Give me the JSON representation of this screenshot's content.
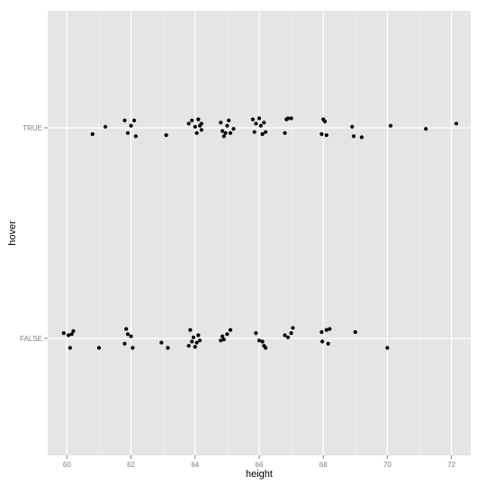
{
  "chart_data": {
    "type": "scatter",
    "title": "",
    "xlabel": "height",
    "ylabel": "hover",
    "xlim": [
      59.4,
      72.6
    ],
    "x_ticks": [
      60,
      62,
      64,
      66,
      68,
      70,
      72
    ],
    "categories": [
      "FALSE",
      "TRUE"
    ],
    "grid": true,
    "background": "#e5e5e5",
    "grid_color": "#ffffff",
    "point_color": "#000000",
    "points": {
      "TRUE": [
        [
          60.8,
          -0.06
        ],
        [
          61.2,
          0.01
        ],
        [
          61.8,
          0.07
        ],
        [
          61.9,
          -0.05
        ],
        [
          62.0,
          0.02
        ],
        [
          62.1,
          0.07
        ],
        [
          62.15,
          -0.08
        ],
        [
          63.1,
          -0.07
        ],
        [
          63.8,
          0.04
        ],
        [
          63.9,
          0.07
        ],
        [
          64.0,
          0.01
        ],
        [
          64.05,
          -0.05
        ],
        [
          64.1,
          0.08
        ],
        [
          64.15,
          0.02
        ],
        [
          64.2,
          -0.02
        ],
        [
          64.2,
          0.04
        ],
        [
          64.8,
          0.05
        ],
        [
          64.85,
          -0.03
        ],
        [
          64.9,
          -0.08
        ],
        [
          64.95,
          -0.05
        ],
        [
          65.0,
          0.02
        ],
        [
          65.05,
          0.07
        ],
        [
          65.1,
          -0.05
        ],
        [
          65.2,
          -0.01
        ],
        [
          65.8,
          0.08
        ],
        [
          65.85,
          -0.04
        ],
        [
          65.9,
          0.04
        ],
        [
          66.0,
          0.09
        ],
        [
          66.05,
          0.02
        ],
        [
          66.1,
          -0.06
        ],
        [
          66.15,
          0.05
        ],
        [
          66.2,
          -0.04
        ],
        [
          66.8,
          -0.05
        ],
        [
          66.85,
          0.08
        ],
        [
          66.9,
          0.09
        ],
        [
          67.0,
          0.09
        ],
        [
          67.95,
          -0.06
        ],
        [
          68.0,
          0.08
        ],
        [
          68.05,
          0.06
        ],
        [
          68.1,
          -0.07
        ],
        [
          68.9,
          0.01
        ],
        [
          68.95,
          -0.08
        ],
        [
          69.2,
          -0.09
        ],
        [
          70.1,
          0.02
        ],
        [
          71.2,
          -0.01
        ],
        [
          72.15,
          0.04
        ]
      ],
      "FALSE": [
        [
          59.9,
          0.05
        ],
        [
          60.05,
          0.03
        ],
        [
          60.1,
          -0.09
        ],
        [
          60.15,
          0.04
        ],
        [
          60.2,
          0.07
        ],
        [
          61.0,
          -0.09
        ],
        [
          61.8,
          -0.05
        ],
        [
          61.85,
          0.09
        ],
        [
          61.9,
          0.04
        ],
        [
          62.0,
          0.02
        ],
        [
          62.05,
          -0.09
        ],
        [
          62.95,
          -0.04
        ],
        [
          63.15,
          -0.09
        ],
        [
          63.8,
          -0.07
        ],
        [
          63.85,
          0.08
        ],
        [
          63.9,
          -0.03
        ],
        [
          63.95,
          0.01
        ],
        [
          64.0,
          -0.08
        ],
        [
          64.05,
          -0.04
        ],
        [
          64.1,
          0.03
        ],
        [
          64.15,
          -0.02
        ],
        [
          64.8,
          -0.02
        ],
        [
          64.85,
          0.02
        ],
        [
          64.9,
          -0.01
        ],
        [
          65.0,
          0.04
        ],
        [
          65.1,
          0.08
        ],
        [
          65.9,
          0.05
        ],
        [
          66.0,
          -0.02
        ],
        [
          66.1,
          -0.03
        ],
        [
          66.15,
          -0.07
        ],
        [
          66.2,
          -0.09
        ],
        [
          66.8,
          0.03
        ],
        [
          66.9,
          0.01
        ],
        [
          67.0,
          0.05
        ],
        [
          67.05,
          0.1
        ],
        [
          67.95,
          0.06
        ],
        [
          67.97,
          -0.03
        ],
        [
          68.1,
          0.08
        ],
        [
          68.15,
          -0.05
        ],
        [
          68.2,
          0.09
        ],
        [
          69.0,
          0.06
        ],
        [
          70.0,
          -0.09
        ]
      ]
    }
  }
}
